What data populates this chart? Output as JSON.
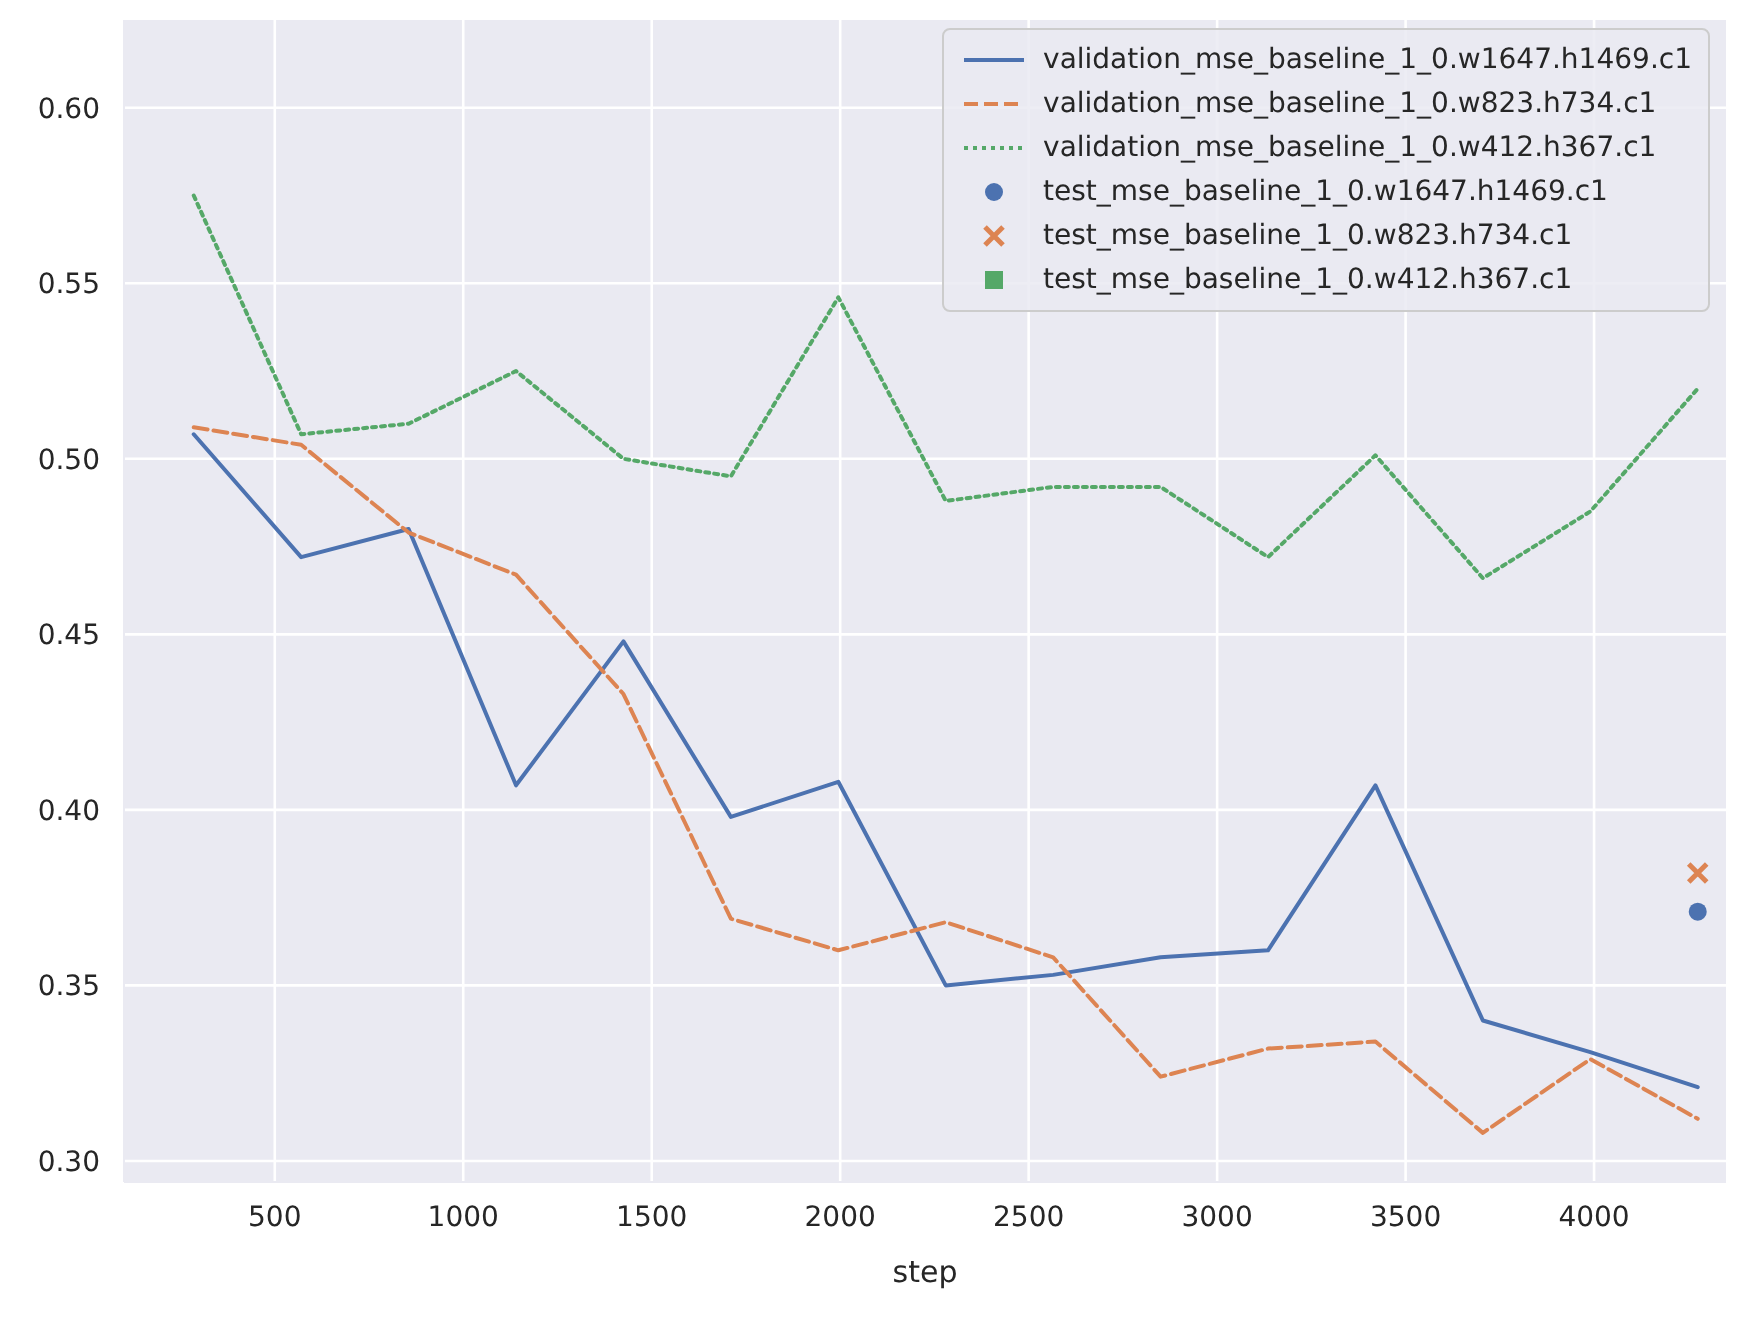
{
  "chart_data": {
    "type": "line",
    "xlabel": "step",
    "x": [
      285,
      570,
      855,
      1140,
      1425,
      1710,
      1995,
      2280,
      2565,
      2850,
      3135,
      3420,
      3705,
      3990,
      4275
    ],
    "series": [
      {
        "name": "validation_mse_baseline_1_0.w1647.h1469.c1",
        "color": "#4c72b0",
        "line_style": "solid",
        "values": [
          0.507,
          0.472,
          0.48,
          0.407,
          0.448,
          0.398,
          0.408,
          0.35,
          0.353,
          0.358,
          0.36,
          0.407,
          0.34,
          0.331,
          0.321
        ]
      },
      {
        "name": "validation_mse_baseline_1_0.w823.h734.c1",
        "color": "#dd8452",
        "line_style": "dashed",
        "values": [
          0.509,
          0.504,
          0.479,
          0.467,
          0.433,
          0.369,
          0.36,
          0.368,
          0.358,
          0.324,
          0.332,
          0.334,
          0.308,
          0.329,
          0.312
        ]
      },
      {
        "name": "validation_mse_baseline_1_0.w412.h367.c1",
        "color": "#55a868",
        "line_style": "dotted",
        "values": [
          0.575,
          0.507,
          0.51,
          0.525,
          0.5,
          0.495,
          0.546,
          0.488,
          0.492,
          0.492,
          0.472,
          0.501,
          0.466,
          0.485,
          0.52
        ]
      },
      {
        "name": "test_mse_baseline_1_0.w1647.h1469.c1",
        "type": "scatter",
        "marker": "circle",
        "color": "#4c72b0",
        "x": [
          4275
        ],
        "values": [
          0.371
        ]
      },
      {
        "name": "test_mse_baseline_1_0.w823.h734.c1",
        "type": "scatter",
        "marker": "cross",
        "color": "#dd8452",
        "x": [
          4275
        ],
        "values": [
          0.382
        ]
      },
      {
        "name": "test_mse_baseline_1_0.w412.h367.c1",
        "type": "scatter",
        "marker": "square",
        "color": "#55a868",
        "values": [
          null,
          null,
          null,
          null,
          null,
          null,
          null,
          null,
          null,
          null,
          null,
          null,
          null,
          null,
          null
        ]
      }
    ],
    "xlim": [
      100,
      4350
    ],
    "xticks": [
      500,
      1000,
      1500,
      2000,
      2500,
      3000,
      3500,
      4000
    ],
    "ylim": [
      0.294,
      0.625
    ],
    "yticks": [
      {
        "value": 0.3,
        "label": "0.30"
      },
      0.35,
      {
        "value": 0.4,
        "label": "0.40"
      },
      0.45,
      {
        "value": 0.5,
        "label": "0.50"
      },
      0.55,
      {
        "value": 0.6,
        "label": "0.60"
      }
    ],
    "grid": true,
    "legend": "top right"
  }
}
